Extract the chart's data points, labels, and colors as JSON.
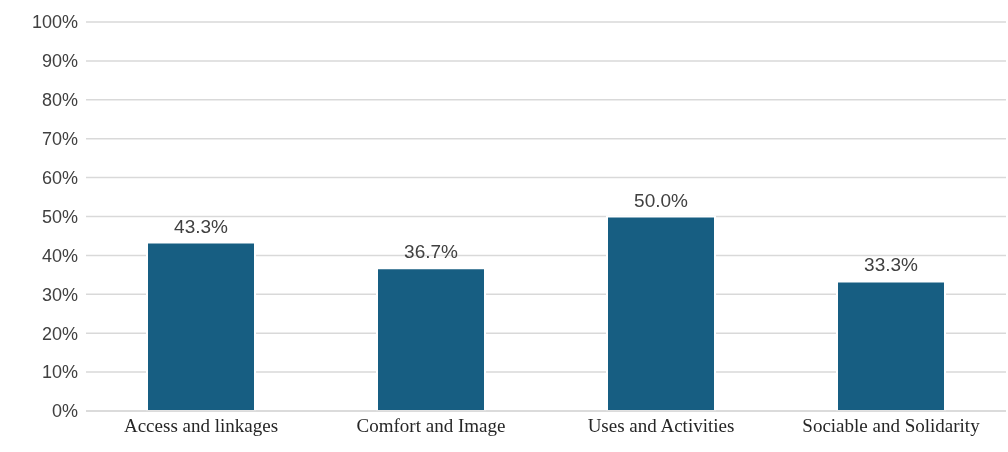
{
  "chart_data": {
    "type": "bar",
    "categories": [
      "Access and linkages",
      "Comfort and Image",
      "Uses and Activities",
      "Sociable and Solidarity"
    ],
    "values": [
      43.3,
      36.7,
      50.0,
      33.3
    ],
    "value_labels": [
      "43.3%",
      "36.7%",
      "50.0%",
      "33.3%"
    ],
    "color": "#175e82",
    "ylim": [
      0,
      100
    ],
    "yticks": [
      {
        "value": 0,
        "label": "0%"
      },
      {
        "value": 10,
        "label": "10%"
      },
      {
        "value": 20,
        "label": "20%"
      },
      {
        "value": 30,
        "label": "30%"
      },
      {
        "value": 40,
        "label": "40%"
      },
      {
        "value": 50,
        "label": "50%"
      },
      {
        "value": 60,
        "label": "60%"
      },
      {
        "value": 70,
        "label": "70%"
      },
      {
        "value": 80,
        "label": "80%"
      },
      {
        "value": 90,
        "label": "90%"
      },
      {
        "value": 100,
        "label": "100%"
      }
    ],
    "grid": "y",
    "legend": false
  }
}
